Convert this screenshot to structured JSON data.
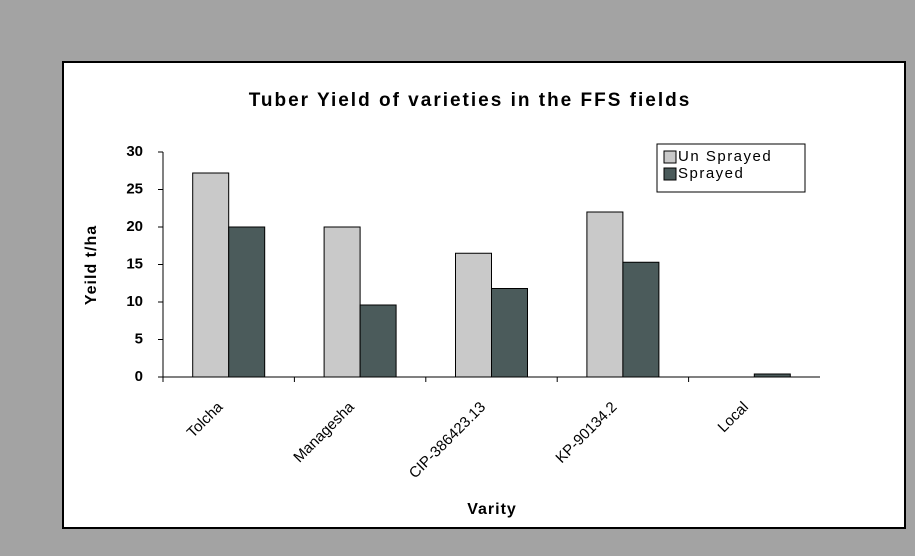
{
  "chart_data": {
    "type": "bar",
    "title": "Tuber Yield of varieties in the FFS fields",
    "x_label": "Varity",
    "y_label": "Yeild t/ha",
    "categories": [
      "Tolcha",
      "Managesha",
      "CIP-386423.13",
      "KP-90134.2",
      "Local"
    ],
    "series": [
      {
        "name": "Un Sprayed",
        "color": "#c9c9c9",
        "values": [
          27.2,
          20,
          16.5,
          22,
          0
        ]
      },
      {
        "name": "Sprayed",
        "color": "#4b5b5b",
        "values": [
          20,
          9.6,
          11.8,
          15.3,
          0.4
        ]
      }
    ],
    "ylim": [
      0,
      30
    ],
    "yticks": [
      0,
      5,
      10,
      15,
      20,
      25,
      30
    ],
    "grid": false,
    "legend": "top-right"
  }
}
